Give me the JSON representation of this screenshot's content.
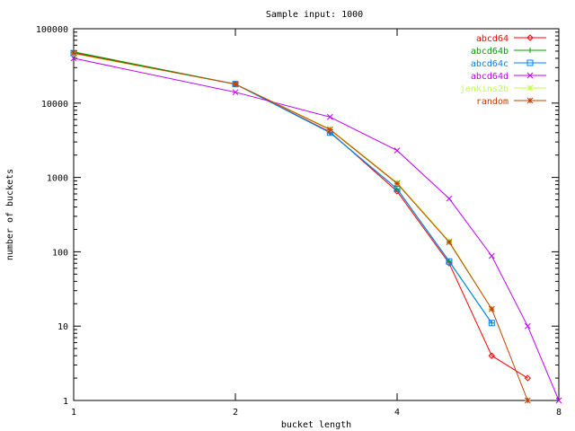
{
  "chart_data": {
    "type": "line",
    "title": "Sample input: 1000",
    "xlabel": "bucket length",
    "ylabel": "number of buckets",
    "x_scale": "log2",
    "y_scale": "log10",
    "xlim": [
      1,
      8
    ],
    "ylim": [
      1,
      100000
    ],
    "x_ticks": [
      1,
      2,
      4,
      8
    ],
    "x_tick_labels": [
      "1",
      "2",
      "4",
      "8"
    ],
    "y_ticks": [
      1,
      10,
      100,
      1000,
      10000,
      100000
    ],
    "y_tick_labels": [
      "1",
      "10",
      "100",
      "1000",
      "10000",
      "100000"
    ],
    "grid": false,
    "legend_position": "top-right",
    "series": [
      {
        "name": "abcd64",
        "color": "#ff0000",
        "marker": "diamond",
        "x": [
          1,
          2,
          3,
          4,
          5,
          6,
          7
        ],
        "y": [
          48000,
          18000,
          4100,
          650,
          70,
          4,
          2
        ]
      },
      {
        "name": "abcd64b",
        "color": "#00a000",
        "marker": "plus",
        "x": [
          1,
          2,
          3,
          4,
          5,
          6
        ],
        "y": [
          49000,
          18000,
          4000,
          700,
          75,
          11
        ]
      },
      {
        "name": "abcd64c",
        "color": "#0080ff",
        "marker": "square",
        "x": [
          1,
          2,
          3,
          4,
          5,
          6
        ],
        "y": [
          47000,
          18000,
          4000,
          700,
          74,
          11
        ]
      },
      {
        "name": "abcd64d",
        "color": "#c000ff",
        "marker": "x",
        "x": [
          1,
          2,
          3,
          4,
          5,
          6,
          7,
          8
        ],
        "y": [
          40000,
          14000,
          6500,
          2300,
          520,
          88,
          10,
          1
        ]
      },
      {
        "name": "jenkins2b",
        "color": "#c0ff40",
        "marker": "star",
        "x": [
          1,
          2,
          3,
          4,
          5,
          6
        ],
        "y": [
          46000,
          18000,
          4500,
          850,
          140,
          17
        ]
      },
      {
        "name": "random",
        "color": "#c04000",
        "marker": "star",
        "x": [
          1,
          2,
          3,
          4,
          5,
          6,
          7
        ],
        "y": [
          47000,
          18000,
          4400,
          830,
          135,
          17,
          1
        ]
      }
    ]
  }
}
